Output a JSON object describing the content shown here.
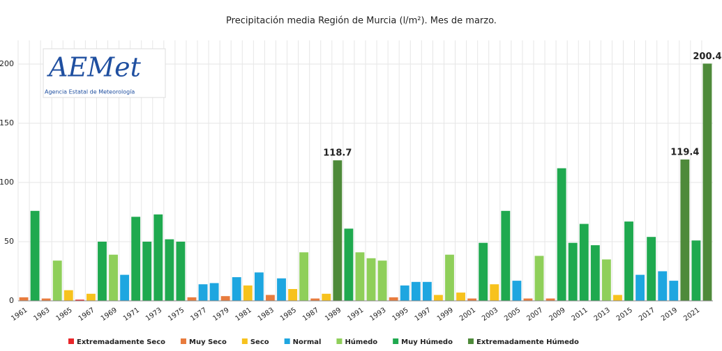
{
  "chart_data": {
    "type": "bar",
    "title": "Precipitación media Región de Murcia (l/m²). Mes de marzo.",
    "logo": {
      "text": "AEMet",
      "subtitle": "Agencia Estatal de Meteorología"
    },
    "categories": [
      "1961",
      null,
      "1963",
      null,
      "1965",
      null,
      "1967",
      null,
      "1969",
      null,
      "1971",
      null,
      "1973",
      null,
      "1975",
      null,
      "1977",
      null,
      "1979",
      null,
      "1981",
      null,
      "1983",
      null,
      "1985",
      null,
      "1987",
      null,
      "1989",
      null,
      "1991",
      null,
      "1993",
      null,
      "1995",
      null,
      "1997",
      null,
      "1999",
      null,
      "2001",
      null,
      "2003",
      null,
      "2005",
      null,
      "2007",
      null,
      "2009",
      null,
      "2011",
      null,
      "2013",
      null,
      "2015",
      null,
      "2017",
      null,
      "2019",
      null,
      "2021",
      null
    ],
    "values": [
      3,
      76,
      2,
      34,
      9,
      1,
      6,
      50,
      39,
      22,
      71,
      50,
      73,
      52,
      50,
      3,
      14,
      15,
      4,
      20,
      13,
      24,
      5,
      19,
      10,
      41,
      2,
      6,
      118.7,
      61,
      41,
      36,
      34,
      3,
      13,
      16,
      16,
      5,
      39,
      7,
      2,
      49,
      14,
      76,
      17,
      2,
      38,
      2,
      112,
      49,
      65,
      47,
      35,
      5,
      67,
      22,
      54,
      25,
      17,
      119.4,
      51,
      200.4
    ],
    "value_labels": [
      null,
      null,
      null,
      null,
      null,
      null,
      null,
      null,
      null,
      null,
      null,
      null,
      null,
      null,
      null,
      null,
      null,
      null,
      null,
      null,
      null,
      null,
      null,
      null,
      null,
      null,
      null,
      null,
      "118.7",
      null,
      null,
      null,
      null,
      null,
      null,
      null,
      null,
      null,
      null,
      null,
      null,
      null,
      null,
      null,
      null,
      null,
      null,
      null,
      null,
      null,
      null,
      null,
      null,
      null,
      null,
      null,
      null,
      null,
      null,
      "119.4",
      null,
      "200.4"
    ],
    "colors": [
      "#e87c3e",
      "#1fa94f",
      "#e87c3e",
      "#8fcf5a",
      "#f7c21d",
      "#e8262a",
      "#f7c21d",
      "#1fa94f",
      "#8fcf5a",
      "#1ea6e0",
      "#1fa94f",
      "#1fa94f",
      "#1fa94f",
      "#1fa94f",
      "#1fa94f",
      "#e87c3e",
      "#1ea6e0",
      "#1ea6e0",
      "#e87c3e",
      "#1ea6e0",
      "#f7c21d",
      "#1ea6e0",
      "#e87c3e",
      "#1ea6e0",
      "#f7c21d",
      "#8fcf5a",
      "#e87c3e",
      "#f7c21d",
      "#4e8a3a",
      "#1fa94f",
      "#8fcf5a",
      "#8fcf5a",
      "#8fcf5a",
      "#e87c3e",
      "#1ea6e0",
      "#1ea6e0",
      "#1ea6e0",
      "#f7c21d",
      "#8fcf5a",
      "#f7c21d",
      "#e87c3e",
      "#1fa94f",
      "#f7c21d",
      "#1fa94f",
      "#1ea6e0",
      "#e87c3e",
      "#8fcf5a",
      "#e87c3e",
      "#1fa94f",
      "#1fa94f",
      "#1fa94f",
      "#1fa94f",
      "#8fcf5a",
      "#f7c21d",
      "#1fa94f",
      "#1ea6e0",
      "#1fa94f",
      "#1ea6e0",
      "#1ea6e0",
      "#4e8a3a",
      "#1fa94f",
      "#4e8a3a"
    ],
    "legend": [
      {
        "name": "Extremadamente Seco",
        "color": "#e8262a"
      },
      {
        "name": "Muy Seco",
        "color": "#e87c3e"
      },
      {
        "name": "Seco",
        "color": "#f7c21d"
      },
      {
        "name": "Normal",
        "color": "#1ea6e0"
      },
      {
        "name": "Húmedo",
        "color": "#8fcf5a"
      },
      {
        "name": "Muy Húmedo",
        "color": "#1fa94f"
      },
      {
        "name": "Extremadamente Húmedo",
        "color": "#4e8a3a"
      }
    ],
    "ylim": [
      0,
      220
    ],
    "yticks": [
      0,
      50,
      100,
      150,
      200
    ],
    "grid": true
  }
}
